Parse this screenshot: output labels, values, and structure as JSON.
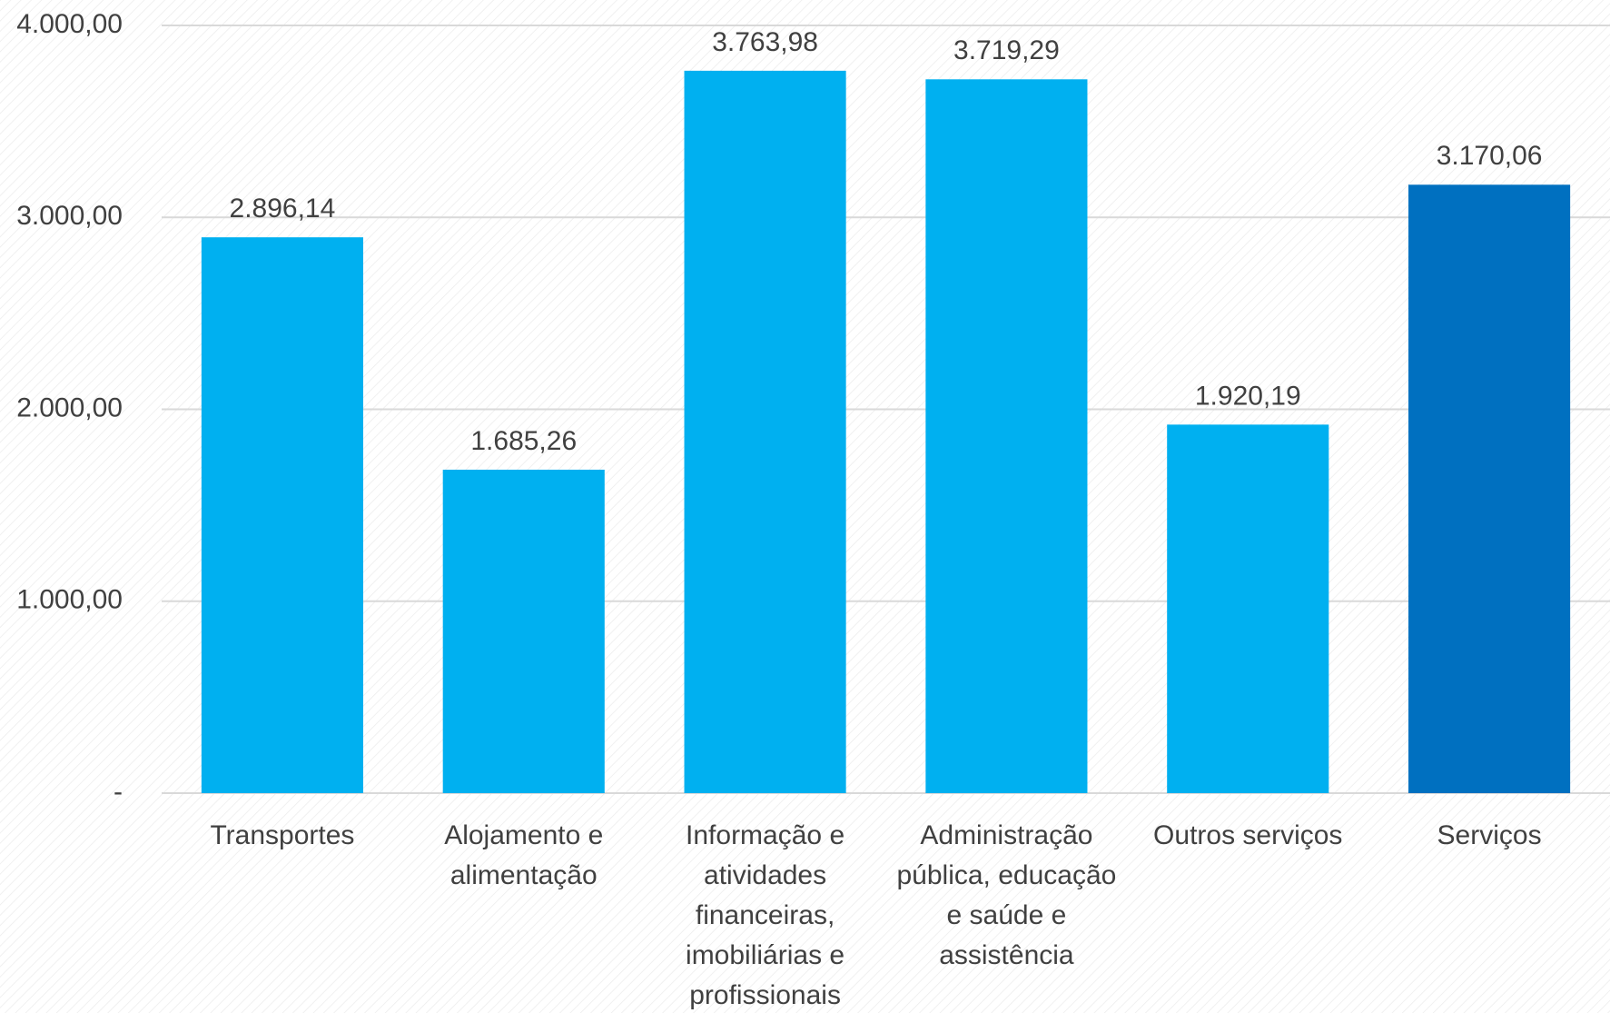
{
  "chart_data": {
    "type": "bar",
    "categories": [
      "Transportes",
      "Alojamento e alimentação",
      "Informação e atividades financeiras, imobiliárias e profissionais",
      "Administração pública, educação e saúde e assistência",
      "Outros serviços",
      "Serviços"
    ],
    "values": [
      2896.14,
      1685.26,
      3763.98,
      3719.29,
      1920.19,
      3170.06
    ],
    "value_labels": [
      "2.896,14",
      "1.685,26",
      "3.763,98",
      "3.719,29",
      "1.920,19",
      "3.170,06"
    ],
    "colors": [
      "#00b0f0",
      "#00b0f0",
      "#00b0f0",
      "#00b0f0",
      "#00b0f0",
      "#0070c0"
    ],
    "ylim": [
      0,
      4000
    ],
    "yticks": [
      {
        "value": 0,
        "label": "-"
      },
      {
        "value": 1000,
        "label": "1.000,00"
      },
      {
        "value": 2000,
        "label": "2.000,00"
      },
      {
        "value": 3000,
        "label": "3.000,00"
      },
      {
        "value": 4000,
        "label": "4.000,00"
      }
    ],
    "grid": true
  }
}
